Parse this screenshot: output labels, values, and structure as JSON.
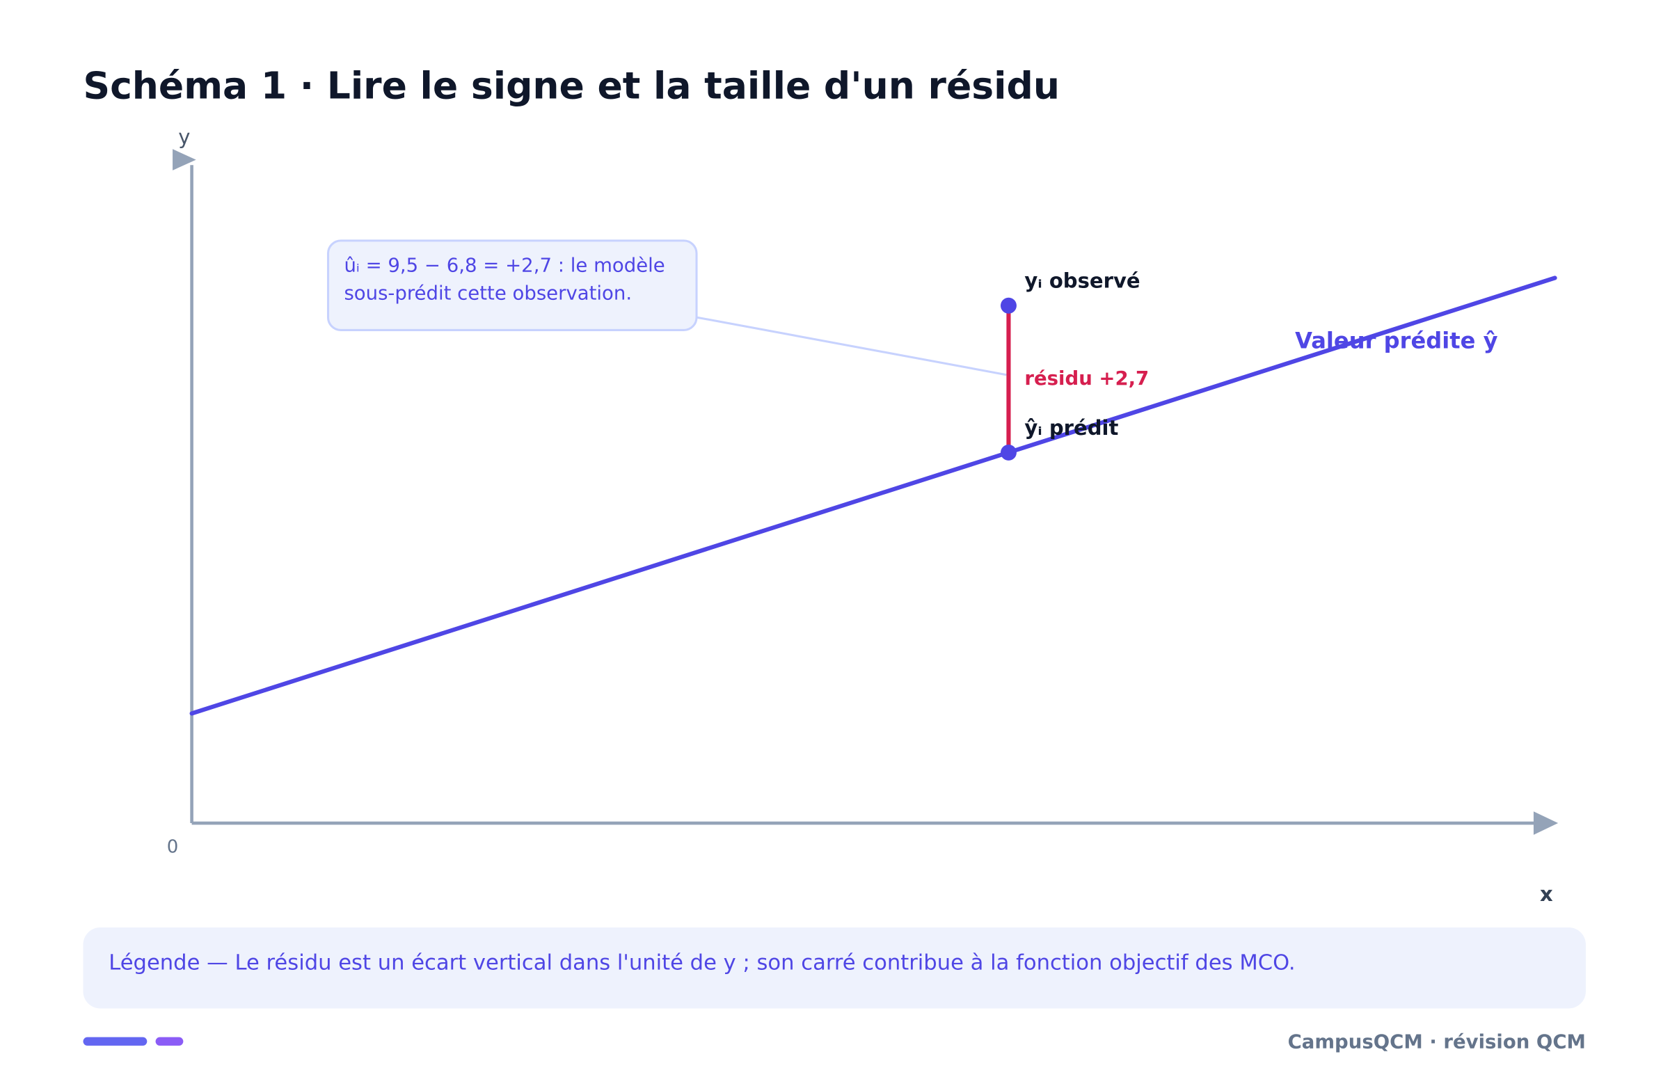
{
  "title": "Schéma 1 · Lire le signe et la taille d'un résidu",
  "axes": {
    "y_label": "y",
    "x_label": "x",
    "origin": "0"
  },
  "callout": {
    "lines": [
      "ûᵢ = 9,5 − 6,8 = +2,7 : le modèle",
      "sous-prédit cette observation."
    ]
  },
  "points": {
    "observed": "yᵢ observé",
    "predicted": "ŷᵢ prédit"
  },
  "residual_label": "résidu +2,7",
  "line_label": "Valeur prédite ŷ",
  "legend": "Légende — Le résidu est un écart vertical dans l'unité de y ; son carré contribue à la fonction objectif des MCO.",
  "footer": "CampusQCM · révision QCM"
}
